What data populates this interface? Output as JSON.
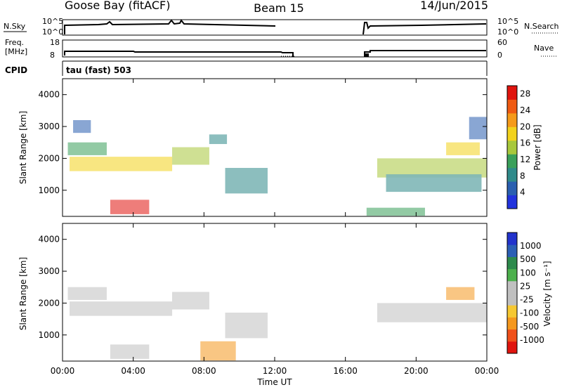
{
  "header": {
    "station": "Goose Bay (fitACF)",
    "beam": "Beam 15",
    "date": "14/Jun/2015"
  },
  "colors": {
    "power": [
      "#2233dd",
      "#2a5fb0",
      "#2f8a8a",
      "#3aa05a",
      "#a8c83c",
      "#f2d21c",
      "#f59a1a",
      "#ef5a12",
      "#e0140e"
    ],
    "velocity": [
      "#e0140e",
      "#f0501a",
      "#f5981e",
      "#f6c832",
      "#c0c0c0",
      "#c0c0c0",
      "#4cb04c",
      "#2d8a4c",
      "#2b5fb5",
      "#2233cc"
    ]
  },
  "chart_data": [
    {
      "type": "line",
      "name": "noise-panel",
      "left_labels": [
        "N.Sky"
      ],
      "right_labels": [
        "N.Search"
      ],
      "ytick_labels": [
        "10^5",
        "10^0"
      ],
      "gaps_hours": [
        [
          12,
          17.2
        ]
      ]
    },
    {
      "type": "line",
      "name": "frequency-panel",
      "left_labels": [
        "Freq.",
        "[MHz]"
      ],
      "right_labels": [
        "Nave"
      ],
      "left_ticks": [
        "18",
        "8"
      ],
      "right_ticks": [
        "60",
        "0"
      ],
      "freq_segment_end_hours": [
        13,
        24
      ]
    },
    {
      "type": "table",
      "name": "cpid-panel",
      "label": "CPID",
      "entries": [
        {
          "label": "tau (fast) 503",
          "start_hour": 0
        }
      ]
    },
    {
      "type": "heatmap",
      "name": "power",
      "ylabel": "Slant Range [km]",
      "ylim": [
        180,
        4500
      ],
      "yticks": [
        1000,
        2000,
        3000,
        4000
      ],
      "xlim": [
        0,
        24
      ],
      "xticks": [
        0,
        4,
        8,
        12,
        16,
        20,
        24
      ],
      "colorbar_label": "Power [dB]",
      "colorbar_ticks": [
        4,
        8,
        12,
        16,
        20,
        24,
        28
      ],
      "colorbar_range": [
        0,
        30
      ],
      "data_gaps_hours": [
        [
          12,
          17.2
        ]
      ],
      "regions": [
        {
          "t": [
            0.4,
            6.2
          ],
          "r": [
            1600,
            2050
          ],
          "value": 18
        },
        {
          "t": [
            6.2,
            8.3
          ],
          "r": [
            1800,
            2350
          ],
          "value": 15
        },
        {
          "t": [
            8.3,
            9.3
          ],
          "r": [
            2450,
            2750
          ],
          "value": 8
        },
        {
          "t": [
            2.7,
            4.9
          ],
          "r": [
            250,
            700
          ],
          "value": 27
        },
        {
          "t": [
            0.3,
            2.5
          ],
          "r": [
            2100,
            2500
          ],
          "value": 10
        },
        {
          "t": [
            0.6,
            1.6
          ],
          "r": [
            2800,
            3200
          ],
          "value": 6
        },
        {
          "t": [
            9.2,
            11.6
          ],
          "r": [
            900,
            1700
          ],
          "value": 7
        },
        {
          "t": [
            17.8,
            24
          ],
          "r": [
            1400,
            2000
          ],
          "value": 15
        },
        {
          "t": [
            21.7,
            23.6
          ],
          "r": [
            2100,
            2500
          ],
          "value": 19
        },
        {
          "t": [
            17.2,
            20.5
          ],
          "r": [
            200,
            450
          ],
          "value": 12
        },
        {
          "t": [
            18.3,
            23.7
          ],
          "r": [
            950,
            1500
          ],
          "value": 7
        },
        {
          "t": [
            23,
            24
          ],
          "r": [
            2600,
            3300
          ],
          "value": 5
        }
      ]
    },
    {
      "type": "heatmap",
      "name": "velocity",
      "ylabel": "Slant Range [km]",
      "ylim": [
        180,
        4500
      ],
      "yticks": [
        1000,
        2000,
        3000,
        4000
      ],
      "xlim": [
        0,
        24
      ],
      "xticks": [
        0,
        4,
        8,
        12,
        16,
        20,
        24
      ],
      "xtick_labels": [
        "00:00",
        "04:00",
        "08:00",
        "12:00",
        "16:00",
        "20:00",
        "00:00"
      ],
      "xlabel": "Time UT",
      "colorbar_label": "Velocity [m s⁻¹]",
      "colorbar_ticks": [
        "1000",
        "500",
        "100",
        "25",
        "-25",
        "-100",
        "-500",
        "-1000"
      ],
      "data_gaps_hours": [
        [
          12,
          17.2
        ]
      ],
      "regions": [
        {
          "t": [
            0.4,
            6.2
          ],
          "r": [
            1600,
            2050
          ],
          "value": 0
        },
        {
          "t": [
            6.2,
            8.3
          ],
          "r": [
            1800,
            2350
          ],
          "value": 0
        },
        {
          "t": [
            2.7,
            4.9
          ],
          "r": [
            250,
            700
          ],
          "value": 0
        },
        {
          "t": [
            7.8,
            9.8
          ],
          "r": [
            200,
            800
          ],
          "value": -150
        },
        {
          "t": [
            17.8,
            24
          ],
          "r": [
            1400,
            2000
          ],
          "value": 0
        },
        {
          "t": [
            21.7,
            23.3
          ],
          "r": [
            2100,
            2500
          ],
          "value": -120
        },
        {
          "t": [
            9.2,
            11.6
          ],
          "r": [
            900,
            1700
          ],
          "value": 0
        },
        {
          "t": [
            0.3,
            2.5
          ],
          "r": [
            2100,
            2500
          ],
          "value": 0
        }
      ]
    }
  ]
}
